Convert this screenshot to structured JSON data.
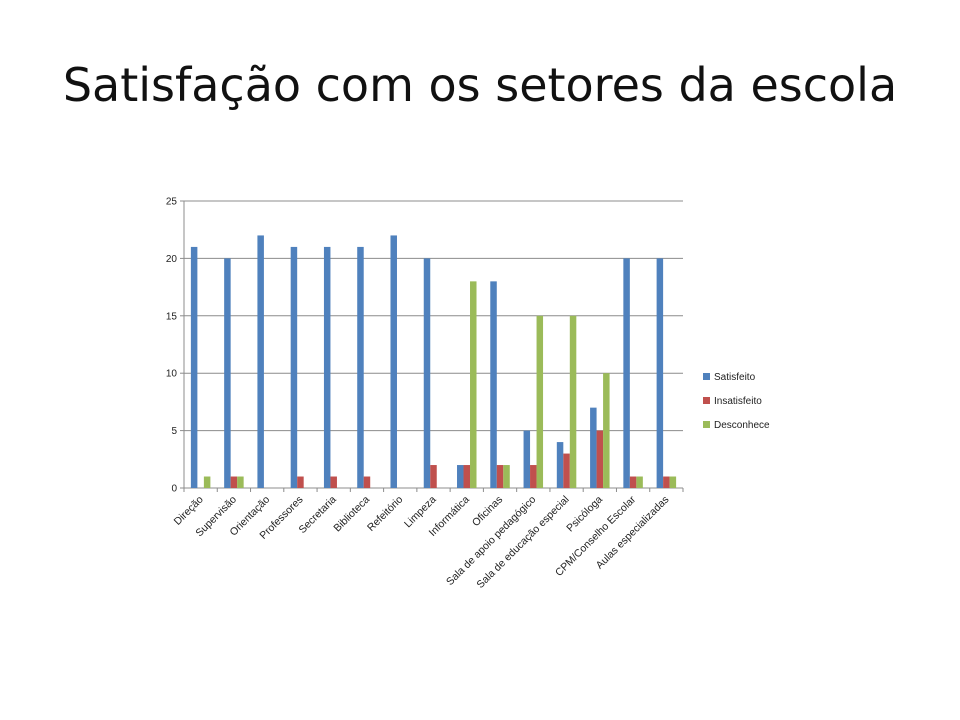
{
  "slide": {
    "title": "Satisfação com os setores da escola"
  },
  "chart_data": {
    "type": "bar",
    "categories": [
      "Direção",
      "Supervisão",
      "Orientação",
      "Professores",
      "Secretaria",
      "Biblioteca",
      "Refeitório",
      "Limpeza",
      "Informática",
      "Oficinas",
      "Sala de apoio pedagógico",
      "Sala de educação especial",
      "Psicóloga",
      "CPM/Conselho Escolar",
      "Aulas especializadas"
    ],
    "series": [
      {
        "name": "Satisfeito",
        "color": "#4f81bd",
        "values": [
          21,
          20,
          22,
          21,
          21,
          21,
          22,
          20,
          2,
          18,
          5,
          4,
          7,
          20,
          20
        ]
      },
      {
        "name": "Insatisfeito",
        "color": "#c0504d",
        "values": [
          0,
          1,
          0,
          1,
          1,
          1,
          0,
          2,
          2,
          2,
          2,
          3,
          5,
          1,
          1
        ]
      },
      {
        "name": "Desconhece",
        "color": "#9bbb59",
        "values": [
          1,
          1,
          0,
          0,
          0,
          0,
          0,
          0,
          18,
          2,
          15,
          15,
          10,
          1,
          1
        ]
      }
    ],
    "ylim": [
      0,
      25
    ],
    "yticks": [
      "0",
      "5",
      "10",
      "15",
      "20",
      "25"
    ],
    "grid": true,
    "legend": "right"
  }
}
